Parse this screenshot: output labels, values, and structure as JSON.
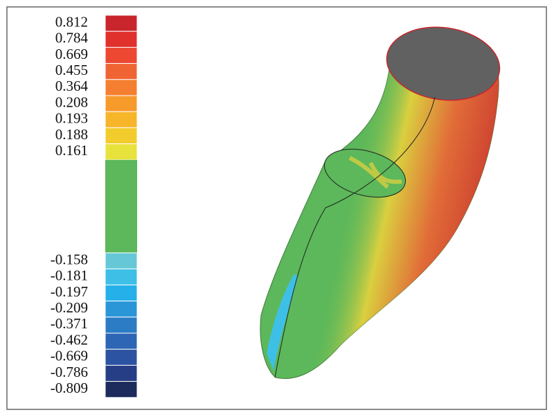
{
  "legend": {
    "upper": [
      {
        "label": "0.812",
        "color": "#c8262c"
      },
      {
        "label": "0.784",
        "color": "#e0312d"
      },
      {
        "label": "0.669",
        "color": "#ec4832"
      },
      {
        "label": "0.455",
        "color": "#f06434"
      },
      {
        "label": "0.364",
        "color": "#f47f30"
      },
      {
        "label": "0.208",
        "color": "#f79a2c"
      },
      {
        "label": "0.193",
        "color": "#f7b52a"
      },
      {
        "label": "0.188",
        "color": "#f2cc2c"
      },
      {
        "label": "0.161",
        "color": "#e8e23c"
      }
    ],
    "middle_color": "#5cb85a",
    "lower": [
      {
        "label": "-0.158",
        "color": "#66c8d6"
      },
      {
        "label": "-0.181",
        "color": "#3ec0e6"
      },
      {
        "label": "-0.197",
        "color": "#26b0ea"
      },
      {
        "label": "-0.209",
        "color": "#2a96d8"
      },
      {
        "label": "-0.371",
        "color": "#2b7cc4"
      },
      {
        "label": "-0.462",
        "color": "#2c66b4"
      },
      {
        "label": "-0.669",
        "color": "#2c52a2"
      },
      {
        "label": "-0.786",
        "color": "#263e86"
      },
      {
        "label": "-0.809",
        "color": "#1c2a5c"
      }
    ]
  }
}
